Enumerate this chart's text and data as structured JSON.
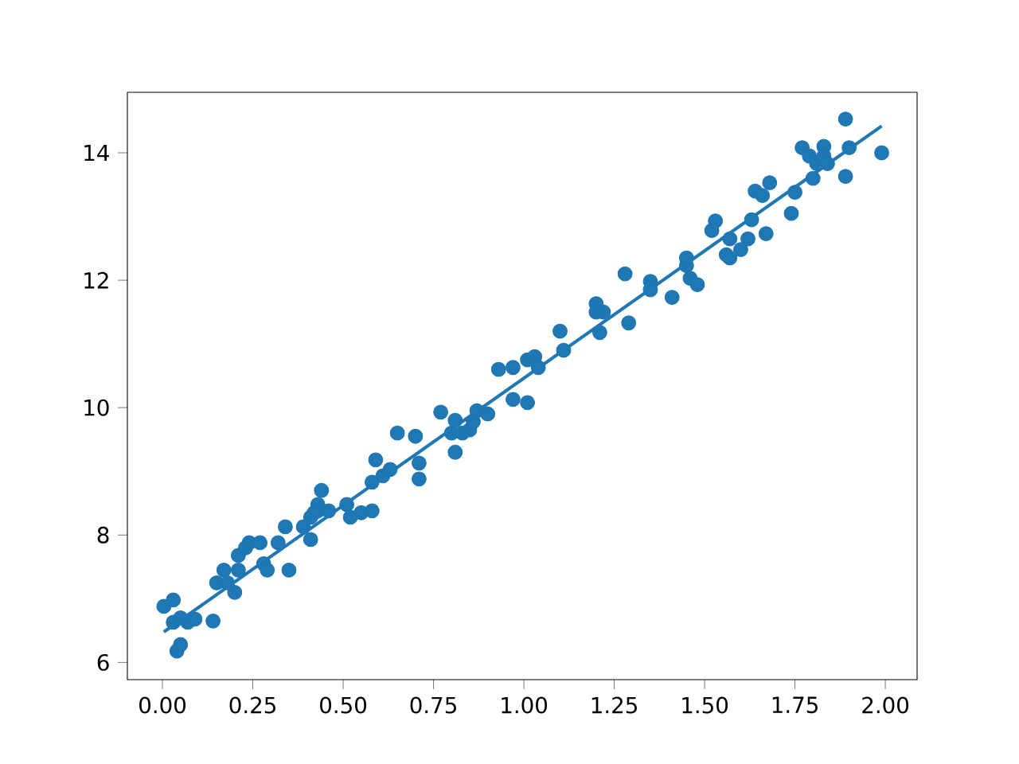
{
  "chart_data": {
    "type": "scatter",
    "grid": false,
    "xlim": [
      -0.097,
      2.088
    ],
    "ylim": [
      5.73,
      14.95
    ],
    "xticks": [
      {
        "value": 0,
        "label": "0.00"
      },
      {
        "value": 0.25,
        "label": "0.25"
      },
      {
        "value": 0.5,
        "label": "0.50"
      },
      {
        "value": 0.75,
        "label": "0.75"
      },
      {
        "value": 1,
        "label": "1.00"
      },
      {
        "value": 1.25,
        "label": "1.25"
      },
      {
        "value": 1.5,
        "label": "1.50"
      },
      {
        "value": 1.75,
        "label": "1.75"
      },
      {
        "value": 2,
        "label": "2.00"
      }
    ],
    "yticks": [
      6,
      8,
      10,
      12,
      14
    ],
    "series": [
      {
        "marker": "circle",
        "color": "#1f77b4",
        "x": [
          0.004,
          0.03,
          0.03,
          0.04,
          0.05,
          0.05,
          0.07,
          0.09,
          0.14,
          0.15,
          0.17,
          0.18,
          0.2,
          0.21,
          0.21,
          0.23,
          0.24,
          0.27,
          0.28,
          0.29,
          0.32,
          0.34,
          0.35,
          0.39,
          0.41,
          0.41,
          0.42,
          0.43,
          0.43,
          0.44,
          0.46,
          0.51,
          0.52,
          0.55,
          0.58,
          0.58,
          0.59,
          0.61,
          0.63,
          0.65,
          0.7,
          0.71,
          0.71,
          0.77,
          0.8,
          0.81,
          0.81,
          0.83,
          0.85,
          0.86,
          0.87,
          0.9,
          0.93,
          0.97,
          0.97,
          1.01,
          1.01,
          1.03,
          1.04,
          1.1,
          1.11,
          1.2,
          1.2,
          1.21,
          1.22,
          1.28,
          1.29,
          1.35,
          1.35,
          1.41,
          1.45,
          1.45,
          1.46,
          1.48,
          1.52,
          1.53,
          1.56,
          1.57,
          1.57,
          1.6,
          1.62,
          1.63,
          1.64,
          1.66,
          1.67,
          1.68,
          1.74,
          1.75,
          1.77,
          1.79,
          1.8,
          1.81,
          1.83,
          1.83,
          1.84,
          1.89,
          1.89,
          1.9,
          1.99
        ],
        "values": [
          6.88,
          6.98,
          6.63,
          6.18,
          6.28,
          6.7,
          6.63,
          6.68,
          6.65,
          7.25,
          7.45,
          7.25,
          7.1,
          7.45,
          7.68,
          7.8,
          7.88,
          7.88,
          7.55,
          7.45,
          7.88,
          8.13,
          7.45,
          8.13,
          8.28,
          7.93,
          8.35,
          8.48,
          8.38,
          8.7,
          8.38,
          8.48,
          8.28,
          8.35,
          8.83,
          8.38,
          9.18,
          8.93,
          9.03,
          9.6,
          9.55,
          9.13,
          8.88,
          9.93,
          9.6,
          9.8,
          9.3,
          9.6,
          9.65,
          9.78,
          9.95,
          9.9,
          10.6,
          10.63,
          10.13,
          10.08,
          10.75,
          10.8,
          10.63,
          11.2,
          10.9,
          11.63,
          11.5,
          11.18,
          11.5,
          12.1,
          11.33,
          11.98,
          11.85,
          11.73,
          12.23,
          12.35,
          12.03,
          11.93,
          12.78,
          12.93,
          12.4,
          12.65,
          12.35,
          12.48,
          12.65,
          12.95,
          13.4,
          13.33,
          12.73,
          13.53,
          13.05,
          13.38,
          14.08,
          13.95,
          13.6,
          13.83,
          14.1,
          13.95,
          13.83,
          14.53,
          13.63,
          14.08,
          14.0
        ]
      },
      {
        "type": "line",
        "marker": "none",
        "color": "#1f77b4",
        "x": [
          0.004,
          1.99
        ],
        "values": [
          6.48,
          14.42
        ]
      }
    ]
  }
}
